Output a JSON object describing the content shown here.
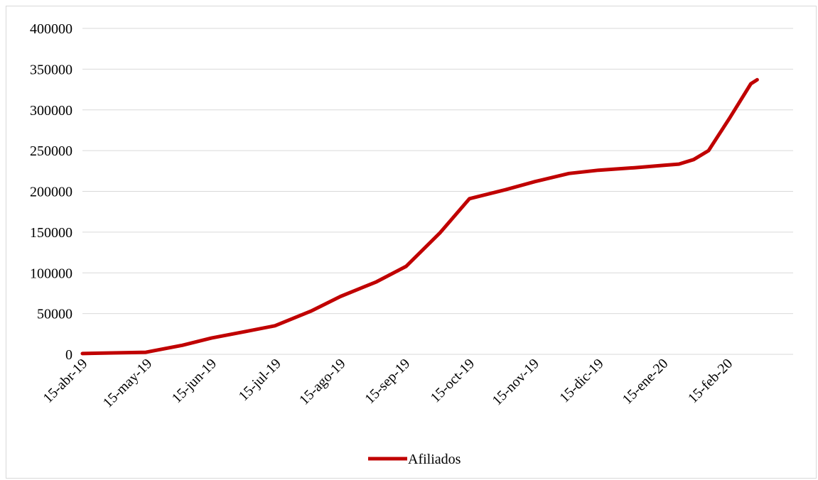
{
  "chart_data": {
    "type": "line",
    "title": "",
    "xlabel": "",
    "ylabel": "",
    "x_tick_labels": [
      "15-abr-19",
      "15-may-19",
      "15-jun-19",
      "15-jul-19",
      "15-ago-19",
      "15-sep-19",
      "15-oct-19",
      "15-nov-19",
      "15-dic-19",
      "15-ene-20",
      "15-feb-20"
    ],
    "y_tick_labels": [
      "0",
      "50000",
      "100000",
      "150000",
      "200000",
      "250000",
      "300000",
      "350000",
      "400000"
    ],
    "ylim": [
      0,
      400000
    ],
    "xlim": [
      "2019-04-15",
      "2020-03-16"
    ],
    "grid": true,
    "legend_position": "bottom",
    "series": [
      {
        "name": "Afiliados",
        "color": "#c00000",
        "points": [
          {
            "x": "2019-04-15",
            "y": 1000
          },
          {
            "x": "2019-05-15",
            "y": 2500
          },
          {
            "x": "2019-06-01",
            "y": 11000
          },
          {
            "x": "2019-06-15",
            "y": 20000
          },
          {
            "x": "2019-07-01",
            "y": 28000
          },
          {
            "x": "2019-07-15",
            "y": 35000
          },
          {
            "x": "2019-08-01",
            "y": 53000
          },
          {
            "x": "2019-08-15",
            "y": 71000
          },
          {
            "x": "2019-09-01",
            "y": 89000
          },
          {
            "x": "2019-09-15",
            "y": 108000
          },
          {
            "x": "2019-10-01",
            "y": 149000
          },
          {
            "x": "2019-10-15",
            "y": 191000
          },
          {
            "x": "2019-11-01",
            "y": 202000
          },
          {
            "x": "2019-11-15",
            "y": 212000
          },
          {
            "x": "2019-12-01",
            "y": 222000
          },
          {
            "x": "2019-12-15",
            "y": 226000
          },
          {
            "x": "2020-01-01",
            "y": 229000
          },
          {
            "x": "2020-01-15",
            "y": 232000
          },
          {
            "x": "2020-01-22",
            "y": 233500
          },
          {
            "x": "2020-01-29",
            "y": 239000
          },
          {
            "x": "2020-02-05",
            "y": 250000
          },
          {
            "x": "2020-02-15",
            "y": 290000
          },
          {
            "x": "2020-02-25",
            "y": 332000
          },
          {
            "x": "2020-02-28",
            "y": 337000
          }
        ]
      }
    ]
  }
}
